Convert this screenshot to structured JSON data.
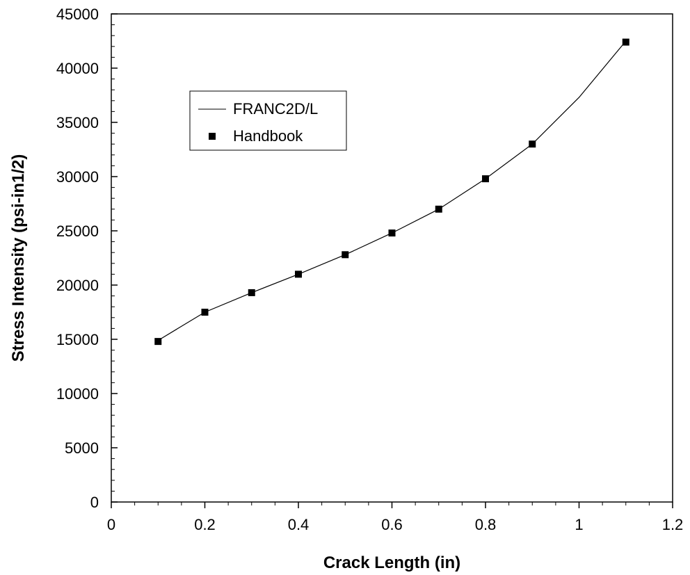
{
  "chart_data": {
    "type": "line",
    "title": "",
    "xlabel": "Crack Length (in)",
    "ylabel": "Stress Intensity (psi-in1/2)",
    "xlim": [
      0,
      1.2
    ],
    "ylim": [
      0,
      45000
    ],
    "x_ticks": [
      0,
      0.2,
      0.4,
      0.6,
      0.8,
      1,
      1.2
    ],
    "x_tick_labels": [
      "0",
      "0.2",
      "0.4",
      "0.6",
      "0.8",
      "1",
      "1.2"
    ],
    "y_ticks": [
      0,
      5000,
      10000,
      15000,
      20000,
      25000,
      30000,
      35000,
      40000,
      45000
    ],
    "y_tick_labels": [
      "0",
      "5000",
      "10000",
      "15000",
      "20000",
      "25000",
      "30000",
      "35000",
      "40000",
      "45000"
    ],
    "grid": false,
    "legend_position": "top-left",
    "series": [
      {
        "name": "FRANC2D/L",
        "style": "line",
        "color": "#000000",
        "x": [
          0.1,
          0.2,
          0.3,
          0.4,
          0.5,
          0.6,
          0.7,
          0.8,
          0.9,
          1.0,
          1.1
        ],
        "y": [
          14900,
          17500,
          19300,
          21000,
          22800,
          24800,
          27000,
          29800,
          33000,
          37300,
          42500
        ]
      },
      {
        "name": "Handbook",
        "style": "marker",
        "marker": "square",
        "color": "#000000",
        "x": [
          0.1,
          0.2,
          0.3,
          0.4,
          0.5,
          0.6,
          0.7,
          0.8,
          0.9,
          1.1
        ],
        "y": [
          14800,
          17500,
          19300,
          21000,
          22800,
          24800,
          27000,
          29800,
          33000,
          42400
        ]
      }
    ]
  }
}
